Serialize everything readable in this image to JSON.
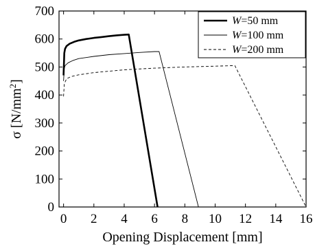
{
  "chart_data": {
    "type": "line",
    "xlabel": "Opening Displacement [mm]",
    "ylabel_prefix": "σ [N/mm",
    "ylabel_sup": "2",
    "ylabel_suffix": "]",
    "xlim": [
      -0.3,
      16
    ],
    "ylim": [
      0,
      700
    ],
    "xticks": [
      0,
      2,
      4,
      6,
      8,
      10,
      12,
      14,
      16
    ],
    "yticks": [
      0,
      100,
      200,
      300,
      400,
      500,
      600,
      700
    ],
    "grid": false,
    "legend_position": "top-right",
    "series": [
      {
        "name_var": "W",
        "name_rest": "=50 mm",
        "style": "thick-solid",
        "x": [
          0,
          0.05,
          0.1,
          0.2,
          0.4,
          0.7,
          1.0,
          1.5,
          2.0,
          2.5,
          3.0,
          3.5,
          4.0,
          4.3,
          6.2
        ],
        "y": [
          470,
          550,
          565,
          575,
          583,
          590,
          595,
          600,
          604,
          607,
          610,
          613,
          615,
          616,
          0
        ]
      },
      {
        "name_var": "W",
        "name_rest": "=100 mm",
        "style": "thin-solid",
        "x": [
          0,
          0.05,
          0.1,
          0.3,
          0.6,
          1.0,
          2.0,
          3.0,
          4.0,
          5.0,
          6.0,
          6.3,
          8.9
        ],
        "y": [
          450,
          495,
          505,
          515,
          523,
          530,
          538,
          544,
          548,
          552,
          555,
          555,
          0
        ]
      },
      {
        "name_var": "W",
        "name_rest": "=200 mm",
        "style": "dashed",
        "x": [
          0,
          0.05,
          0.2,
          0.5,
          1.0,
          2.0,
          4.0,
          6.0,
          8.0,
          10.0,
          11.3,
          16.0
        ],
        "y": [
          395,
          440,
          458,
          466,
          472,
          480,
          490,
          496,
          500,
          503,
          505,
          0
        ]
      }
    ]
  }
}
